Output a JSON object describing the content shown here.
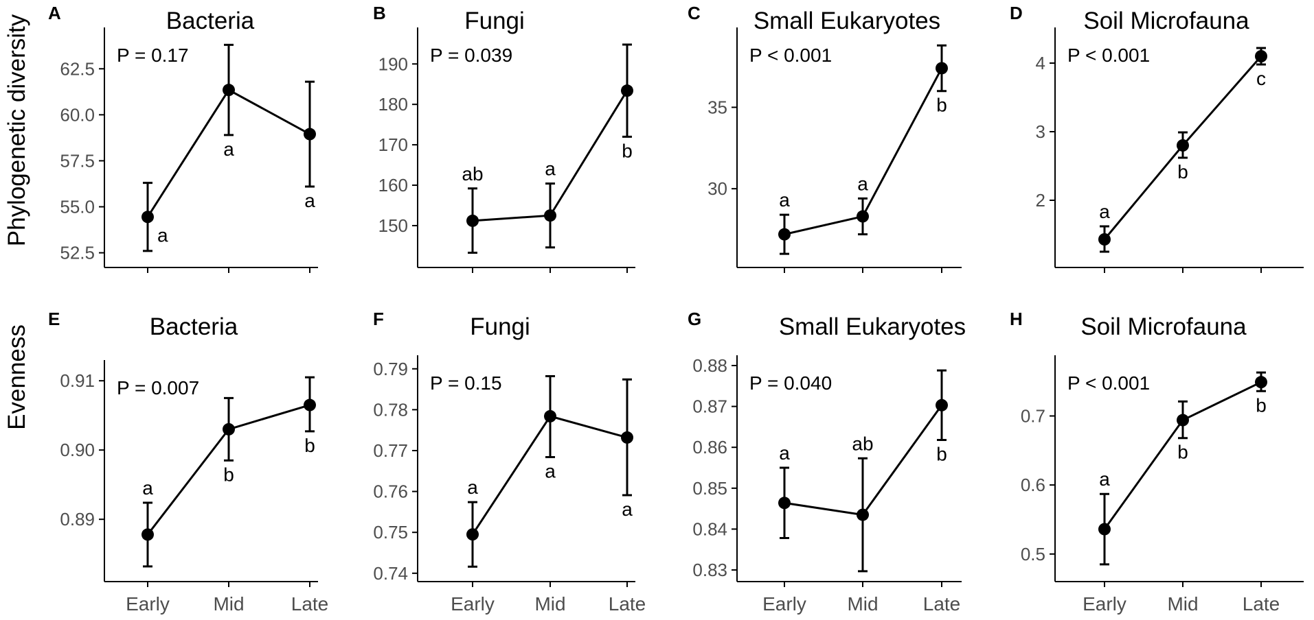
{
  "row_labels": [
    "Phylogenetic diversity",
    "Evenness"
  ],
  "x_labels": [
    "Early",
    "Mid",
    "Late"
  ],
  "chart_data": [
    {
      "letter": "A",
      "type": "line",
      "title": "Bacteria",
      "pvalue": "P = 0.17",
      "ylabel": "Phylogenetic diversity",
      "categories": [
        "Early",
        "Mid",
        "Late"
      ],
      "values": [
        54.45,
        61.35,
        58.95
      ],
      "err_low": [
        52.6,
        58.9,
        56.1
      ],
      "err_high": [
        56.3,
        63.8,
        61.8
      ],
      "sig": [
        "a",
        "a",
        "a"
      ],
      "yticks": [
        52.5,
        55.0,
        57.5,
        60.0,
        62.5
      ],
      "ytick_labels": [
        "52.5",
        "55.0",
        "57.5",
        "60.0",
        "62.5"
      ],
      "ylim": [
        52.0,
        64.3
      ]
    },
    {
      "letter": "B",
      "type": "line",
      "title": "Fungi",
      "pvalue": "P = 0.039",
      "ylabel": "Phylogenetic diversity",
      "categories": [
        "Early",
        "Mid",
        "Late"
      ],
      "values": [
        151.2,
        152.5,
        183.4
      ],
      "err_low": [
        143.3,
        144.6,
        172.0
      ],
      "err_high": [
        159.2,
        160.4,
        194.8
      ],
      "sig": [
        "ab",
        "a",
        "b"
      ],
      "yticks": [
        150,
        160,
        170,
        180,
        190
      ],
      "ytick_labels": [
        "150",
        "160",
        "170",
        "180",
        "190"
      ],
      "ylim": [
        141.0,
        197.0
      ]
    },
    {
      "letter": "C",
      "type": "line",
      "title": "Small Eukaryotes",
      "pvalue": "P < 0.001",
      "ylabel": "Phylogenetic diversity",
      "categories": [
        "Early",
        "Mid",
        "Late"
      ],
      "values": [
        27.2,
        28.3,
        37.4
      ],
      "err_low": [
        26.0,
        27.2,
        36.0
      ],
      "err_high": [
        28.4,
        29.4,
        38.8
      ],
      "sig": [
        "a",
        "a",
        "b"
      ],
      "yticks": [
        30,
        35
      ],
      "ytick_labels": [
        "30",
        "35"
      ],
      "ylim": [
        25.5,
        39.4
      ]
    },
    {
      "letter": "D",
      "type": "line",
      "title": "Soil Microfauna",
      "pvalue": "P < 0.001",
      "ylabel": "Phylogenetic diversity",
      "categories": [
        "Early",
        "Mid",
        "Late"
      ],
      "values": [
        1.43,
        2.8,
        4.1
      ],
      "err_low": [
        1.25,
        2.62,
        3.98
      ],
      "err_high": [
        1.62,
        2.99,
        4.22
      ],
      "sig": [
        "a",
        "b",
        "c"
      ],
      "yticks": [
        2,
        3,
        4
      ],
      "ytick_labels": [
        "2",
        "3",
        "4"
      ],
      "ylim": [
        1.1,
        4.4
      ]
    },
    {
      "letter": "E",
      "type": "line",
      "title": "Bacteria",
      "pvalue": "P = 0.007",
      "ylabel": "Evenness",
      "categories": [
        "Early",
        "Mid",
        "Late"
      ],
      "values": [
        0.8878,
        0.903,
        0.9065
      ],
      "err_low": [
        0.8832,
        0.8985,
        0.9027
      ],
      "err_high": [
        0.8924,
        0.9075,
        0.9105
      ],
      "sig": [
        "a",
        "b",
        "b"
      ],
      "yticks": [
        0.89,
        0.9,
        0.91
      ],
      "ytick_labels": [
        "0.89",
        "0.90",
        "0.91"
      ],
      "ylim": [
        0.8818,
        0.9118
      ]
    },
    {
      "letter": "F",
      "type": "line",
      "title": "Fungi",
      "pvalue": "P = 0.15",
      "ylabel": "Evenness",
      "categories": [
        "Early",
        "Mid",
        "Late"
      ],
      "values": [
        0.7495,
        0.7784,
        0.7732
      ],
      "err_low": [
        0.7416,
        0.7684,
        0.7591
      ],
      "err_high": [
        0.7574,
        0.7882,
        0.7874
      ],
      "sig": [
        "a",
        "a",
        "a"
      ],
      "yticks": [
        0.74,
        0.75,
        0.76,
        0.77,
        0.78,
        0.79
      ],
      "ytick_labels": [
        "0.74",
        "0.75",
        "0.76",
        "0.77",
        "0.78",
        "0.79"
      ],
      "ylim": [
        0.7393,
        0.7913
      ]
    },
    {
      "letter": "G",
      "type": "line",
      "title": "Small Eukaryotes",
      "pvalue": "P = 0.040",
      "ylabel": "Evenness",
      "categories": [
        "Early",
        "Mid",
        "Late"
      ],
      "values": [
        0.8464,
        0.8435,
        0.8703
      ],
      "err_low": [
        0.8378,
        0.8297,
        0.8618
      ],
      "err_high": [
        0.855,
        0.8573,
        0.8788
      ],
      "sig": [
        "a",
        "ab",
        "b"
      ],
      "yticks": [
        0.83,
        0.84,
        0.85,
        0.86,
        0.87,
        0.88
      ],
      "ytick_labels": [
        "0.83",
        "0.84",
        "0.85",
        "0.86",
        "0.87",
        "0.88"
      ],
      "ylim": [
        0.8285,
        0.8805
      ]
    },
    {
      "letter": "H",
      "type": "line",
      "title": "Soil Microfauna",
      "pvalue": "P < 0.001",
      "ylabel": "Evenness",
      "categories": [
        "Early",
        "Mid",
        "Late"
      ],
      "values": [
        0.536,
        0.694,
        0.749
      ],
      "err_low": [
        0.485,
        0.668,
        0.736
      ],
      "err_high": [
        0.587,
        0.721,
        0.763
      ],
      "sig": [
        "a",
        "b",
        "b"
      ],
      "yticks": [
        0.5,
        0.6,
        0.7
      ],
      "ytick_labels": [
        "0.5",
        "0.6",
        "0.7"
      ],
      "ylim": [
        0.468,
        0.776
      ]
    }
  ]
}
